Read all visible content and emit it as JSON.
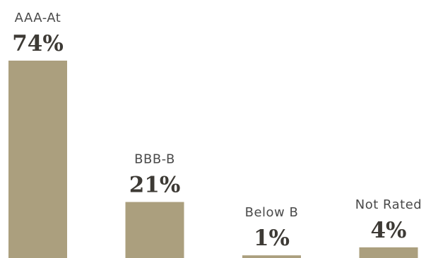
{
  "chart_data": {
    "type": "bar",
    "categories": [
      "AAA-At",
      "BBB-B",
      "Below B",
      "Not Rated"
    ],
    "values": [
      74,
      21,
      1,
      4
    ],
    "value_labels": [
      "74%",
      "21%",
      "1%",
      "4%"
    ],
    "unit": "%",
    "title": "",
    "xlabel": "",
    "ylabel": "",
    "ylim": [
      0,
      74
    ],
    "grid": false,
    "legend": "none",
    "bar_color": "#ab9f7e"
  }
}
